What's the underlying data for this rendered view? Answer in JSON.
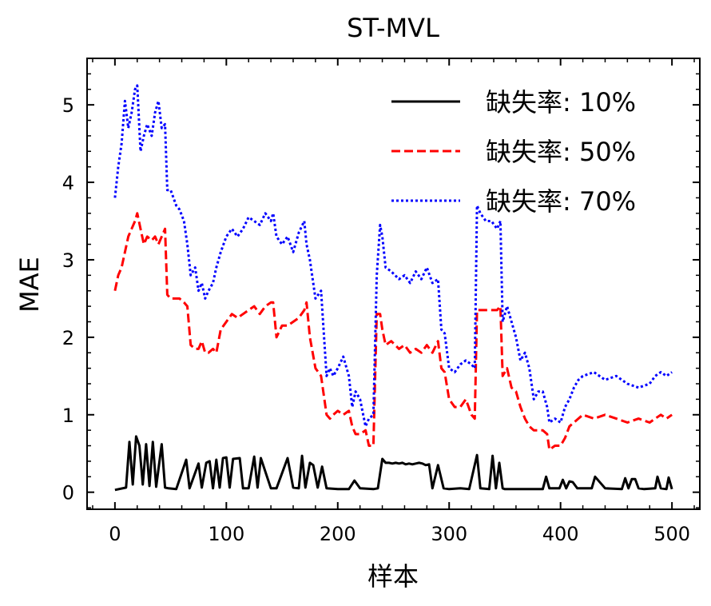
{
  "chart_data": {
    "type": "line",
    "title": "ST-MVL",
    "xlabel": "样本",
    "ylabel": "MAE",
    "xlim": [
      -25,
      525
    ],
    "ylim": [
      -0.22,
      5.6
    ],
    "xticks": [
      0,
      100,
      200,
      300,
      400,
      500
    ],
    "xtick_labels": [
      "0",
      "100",
      "200",
      "300",
      "400",
      "500"
    ],
    "yticks": [
      0,
      1,
      2,
      3,
      4,
      5
    ],
    "ytick_labels": [
      "0",
      "1",
      "2",
      "3",
      "4",
      "5"
    ],
    "legend_position": "top-right",
    "grid": false,
    "series": [
      {
        "name": "缺失率: 10%",
        "color": "#000000",
        "style": "solid",
        "x": [
          0,
          10,
          13,
          16,
          19,
          22,
          25,
          28,
          31,
          34,
          37,
          42,
          45,
          48,
          55,
          64,
          67,
          75,
          78,
          82,
          85,
          88,
          91,
          94,
          97,
          100,
          103,
          106,
          112,
          115,
          120,
          125,
          128,
          131,
          140,
          145,
          155,
          160,
          165,
          168,
          171,
          175,
          178,
          182,
          186,
          190,
          200,
          210,
          215,
          220,
          232,
          236,
          240,
          243,
          246,
          249,
          252,
          255,
          258,
          261,
          264,
          267,
          270,
          273,
          276,
          279,
          282,
          285,
          290,
          295,
          300,
          310,
          318,
          325,
          328,
          336,
          339,
          342,
          345,
          348,
          350,
          360,
          370,
          384,
          387,
          390,
          399,
          402,
          405,
          408,
          411,
          415,
          420,
          428,
          431,
          440,
          455,
          458,
          461,
          464,
          467,
          470,
          475,
          485,
          487,
          490,
          495,
          497,
          500
        ],
        "y": [
          0.03,
          0.06,
          0.65,
          0.1,
          0.72,
          0.6,
          0.1,
          0.62,
          0.08,
          0.65,
          0.07,
          0.62,
          0.06,
          0.05,
          0.04,
          0.42,
          0.05,
          0.37,
          0.06,
          0.38,
          0.4,
          0.05,
          0.42,
          0.06,
          0.44,
          0.45,
          0.06,
          0.43,
          0.44,
          0.05,
          0.05,
          0.46,
          0.06,
          0.44,
          0.05,
          0.05,
          0.44,
          0.06,
          0.05,
          0.47,
          0.06,
          0.38,
          0.35,
          0.06,
          0.33,
          0.05,
          0.04,
          0.04,
          0.15,
          0.05,
          0.04,
          0.05,
          0.43,
          0.38,
          0.38,
          0.37,
          0.38,
          0.37,
          0.38,
          0.36,
          0.37,
          0.36,
          0.37,
          0.38,
          0.37,
          0.35,
          0.36,
          0.05,
          0.35,
          0.05,
          0.04,
          0.05,
          0.04,
          0.48,
          0.05,
          0.04,
          0.47,
          0.05,
          0.38,
          0.05,
          0.04,
          0.04,
          0.04,
          0.04,
          0.2,
          0.05,
          0.05,
          0.16,
          0.05,
          0.14,
          0.13,
          0.05,
          0.05,
          0.05,
          0.2,
          0.05,
          0.04,
          0.18,
          0.05,
          0.17,
          0.17,
          0.05,
          0.04,
          0.05,
          0.2,
          0.05,
          0.04,
          0.19,
          0.04
        ]
      },
      {
        "name": "缺失率: 50%",
        "color": "#ff0000",
        "style": "dashed",
        "x": [
          0,
          3,
          6,
          9,
          12,
          15,
          18,
          20,
          23,
          26,
          29,
          33,
          36,
          39,
          42,
          45,
          47,
          50,
          55,
          58,
          62,
          65,
          68,
          72,
          75,
          78,
          81,
          84,
          88,
          91,
          95,
          100,
          105,
          110,
          115,
          120,
          125,
          130,
          135,
          140,
          142,
          145,
          150,
          155,
          160,
          165,
          170,
          172,
          175,
          180,
          185,
          190,
          193,
          196,
          200,
          205,
          210,
          213,
          216,
          220,
          225,
          228,
          232,
          235,
          238,
          240,
          243,
          248,
          255,
          260,
          265,
          270,
          275,
          280,
          285,
          290,
          293,
          296,
          300,
          305,
          310,
          315,
          320,
          323,
          325,
          328,
          333,
          338,
          343,
          346,
          348,
          352,
          356,
          360,
          364,
          368,
          372,
          376,
          380,
          384,
          388,
          390,
          395,
          400,
          404,
          408,
          412,
          416,
          420,
          430,
          440,
          450,
          460,
          470,
          480,
          485,
          490,
          495,
          500
        ],
        "y": [
          2.6,
          2.8,
          2.9,
          3.1,
          3.3,
          3.4,
          3.5,
          3.6,
          3.4,
          3.2,
          3.3,
          3.25,
          3.3,
          3.2,
          3.3,
          3.4,
          2.55,
          2.5,
          2.5,
          2.5,
          2.45,
          2.4,
          1.9,
          1.85,
          1.85,
          1.95,
          1.8,
          1.8,
          1.85,
          1.8,
          2.1,
          2.2,
          2.3,
          2.25,
          2.3,
          2.35,
          2.4,
          2.3,
          2.4,
          2.45,
          2.45,
          2.0,
          2.15,
          2.15,
          2.2,
          2.25,
          2.35,
          2.45,
          2.0,
          1.6,
          1.5,
          1.0,
          0.95,
          1.0,
          1.05,
          1.0,
          1.05,
          0.85,
          0.75,
          0.75,
          0.8,
          0.6,
          0.6,
          2.3,
          2.3,
          2.1,
          1.9,
          1.95,
          1.85,
          1.9,
          1.8,
          1.85,
          1.8,
          1.9,
          1.8,
          1.95,
          1.6,
          1.55,
          1.2,
          1.1,
          1.1,
          1.2,
          1.0,
          0.95,
          2.35,
          2.35,
          2.35,
          2.35,
          2.35,
          2.4,
          1.5,
          1.6,
          1.35,
          1.3,
          1.1,
          0.95,
          0.85,
          0.8,
          0.8,
          0.8,
          0.75,
          0.55,
          0.6,
          0.6,
          0.7,
          0.85,
          0.9,
          0.95,
          1.0,
          0.95,
          1.0,
          0.95,
          0.9,
          0.95,
          0.9,
          0.95,
          1.0,
          0.95,
          1.0
        ]
      },
      {
        "name": "缺失率: 70%",
        "color": "#0000ff",
        "style": "dotted",
        "x": [
          0,
          3,
          6,
          9,
          12,
          15,
          18,
          20,
          23,
          26,
          29,
          33,
          36,
          39,
          42,
          45,
          47,
          50,
          55,
          58,
          62,
          65,
          68,
          72,
          75,
          78,
          81,
          84,
          88,
          91,
          95,
          100,
          105,
          110,
          115,
          120,
          125,
          130,
          135,
          140,
          142,
          145,
          150,
          155,
          160,
          165,
          170,
          172,
          175,
          180,
          185,
          190,
          193,
          196,
          200,
          205,
          210,
          213,
          216,
          220,
          225,
          228,
          232,
          235,
          238,
          240,
          243,
          248,
          255,
          260,
          265,
          270,
          275,
          280,
          285,
          290,
          293,
          296,
          300,
          305,
          310,
          315,
          320,
          323,
          325,
          328,
          333,
          338,
          343,
          346,
          348,
          352,
          356,
          360,
          364,
          368,
          372,
          376,
          380,
          384,
          388,
          390,
          395,
          400,
          404,
          408,
          412,
          416,
          420,
          430,
          440,
          450,
          460,
          470,
          480,
          485,
          490,
          495,
          500
        ],
        "y": [
          3.8,
          4.2,
          4.5,
          5.05,
          4.7,
          4.9,
          5.2,
          5.25,
          4.4,
          4.6,
          4.75,
          4.6,
          4.9,
          5.05,
          4.7,
          4.75,
          3.9,
          3.9,
          3.7,
          3.65,
          3.5,
          3.2,
          2.8,
          2.9,
          2.6,
          2.7,
          2.5,
          2.6,
          2.7,
          2.9,
          3.1,
          3.3,
          3.4,
          3.3,
          3.4,
          3.55,
          3.5,
          3.45,
          3.6,
          3.5,
          3.6,
          3.3,
          3.2,
          3.3,
          3.1,
          3.35,
          3.5,
          3.2,
          3.0,
          2.5,
          2.6,
          1.5,
          1.6,
          1.5,
          1.6,
          1.75,
          1.5,
          1.1,
          1.3,
          1.2,
          0.85,
          0.95,
          1.0,
          2.8,
          3.45,
          3.3,
          2.9,
          2.85,
          2.75,
          2.8,
          2.7,
          2.85,
          2.75,
          2.9,
          2.7,
          2.75,
          2.1,
          2.05,
          1.6,
          1.55,
          1.65,
          1.7,
          1.65,
          1.6,
          3.7,
          3.6,
          3.5,
          3.5,
          3.4,
          3.5,
          2.2,
          2.4,
          2.2,
          2.0,
          1.7,
          1.8,
          1.6,
          1.2,
          1.3,
          1.3,
          1.1,
          0.9,
          0.95,
          0.9,
          1.1,
          1.2,
          1.35,
          1.45,
          1.5,
          1.55,
          1.45,
          1.5,
          1.4,
          1.35,
          1.4,
          1.5,
          1.55,
          1.5,
          1.55
        ]
      }
    ]
  }
}
